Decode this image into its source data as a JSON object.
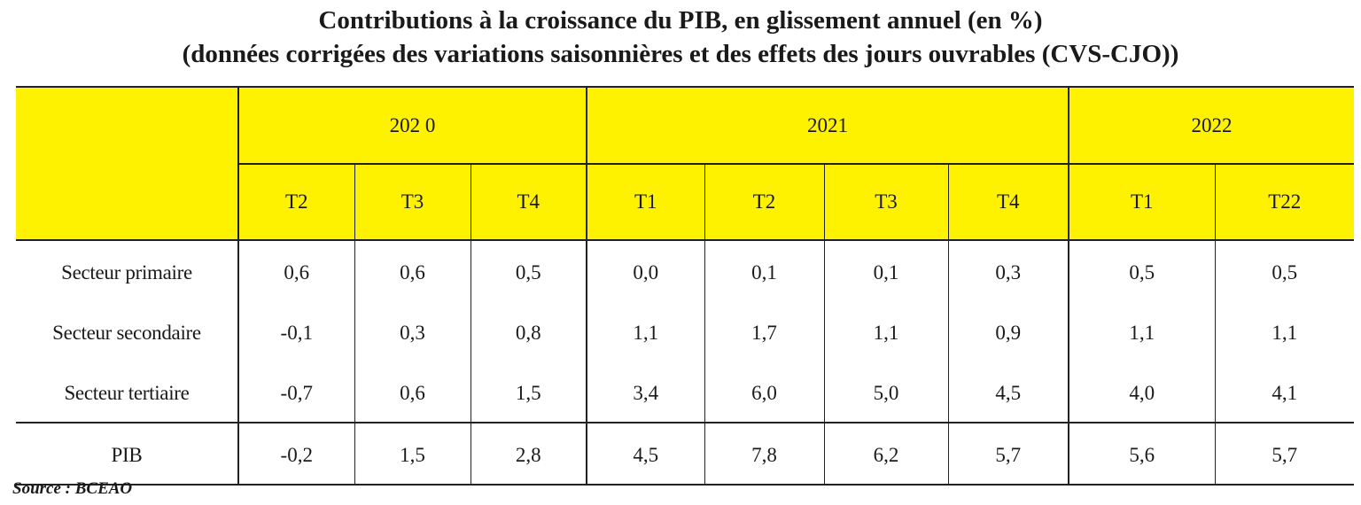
{
  "title_line1": "Contributions à la croissance du PIB, en glissement annuel (en %)",
  "title_line2": "(données corrigées des variations saisonnières et des effets des jours ouvrables (CVS-CJO))",
  "header_color": "#fff200",
  "years": [
    {
      "label": "202 0",
      "span": 3
    },
    {
      "label": "2021",
      "span": 4
    },
    {
      "label": "2022",
      "span": 2
    }
  ],
  "quarters": [
    "T2",
    "T3",
    "T4",
    "T1",
    "T2",
    "T3",
    "T4",
    "T1",
    "T22"
  ],
  "rows": [
    {
      "label": "Secteur primaire",
      "values": [
        "0,6",
        "0,6",
        "0,5",
        "0,0",
        "0,1",
        "0,1",
        "0,3",
        "0,5",
        "0,5"
      ]
    },
    {
      "label": "Secteur secondaire",
      "values": [
        "-0,1",
        "0,3",
        "0,8",
        "1,1",
        "1,7",
        "1,1",
        "0,9",
        "1,1",
        "1,1"
      ]
    },
    {
      "label": "Secteur tertiaire",
      "values": [
        "-0,7",
        "0,6",
        "1,5",
        "3,4",
        "6,0",
        "5,0",
        "4,5",
        "4,0",
        "4,1"
      ]
    },
    {
      "label": "PIB",
      "values": [
        "-0,2",
        "1,5",
        "2,8",
        "4,5",
        "7,8",
        "6,2",
        "5,7",
        "5,6",
        "5,7"
      ]
    }
  ],
  "source": "Source : BCEAO"
}
